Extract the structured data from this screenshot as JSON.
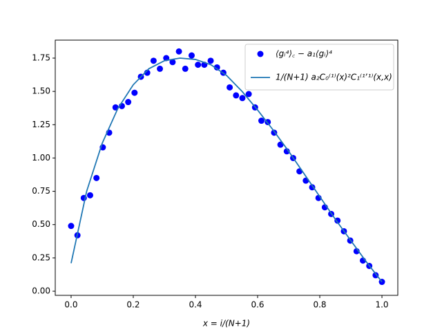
{
  "chart_data": {
    "type": "scatter",
    "x_label": "x = i/(N+1)",
    "xlim": [
      -0.051,
      1.051
    ],
    "ylim": [
      -0.031,
      1.885
    ],
    "xticks": [
      {
        "value": 0,
        "label": "0.0"
      },
      {
        "value": 0.2,
        "label": "0.2"
      },
      {
        "value": 0.4,
        "label": "0.4"
      },
      {
        "value": 0.6,
        "label": "0.6"
      },
      {
        "value": 0.8,
        "label": "0.8"
      },
      {
        "value": 1,
        "label": "1.0"
      }
    ],
    "yticks": [
      {
        "value": 0,
        "label": "0.00"
      },
      {
        "value": 0.25,
        "label": "0.25"
      },
      {
        "value": 0.5,
        "label": "0.50"
      },
      {
        "value": 0.75,
        "label": "0.75"
      },
      {
        "value": 1,
        "label": "1.00"
      },
      {
        "value": 1.25,
        "label": "1.25"
      },
      {
        "value": 1.5,
        "label": "1.50"
      },
      {
        "value": 1.75,
        "label": "1.75"
      }
    ],
    "legend": "upper right",
    "series": [
      {
        "name": "⟨gᵢ⁴⟩꜀ − a₁⟨gᵢ⟩⁴",
        "type": "scatter",
        "color": "#0000ff",
        "x": [
          0,
          0.0204,
          0.0408,
          0.0612,
          0.0816,
          0.102,
          0.1224,
          0.1429,
          0.1633,
          0.1837,
          0.2041,
          0.2245,
          0.2449,
          0.2653,
          0.2857,
          0.3061,
          0.3265,
          0.3469,
          0.3673,
          0.3878,
          0.4082,
          0.4286,
          0.449,
          0.4694,
          0.4898,
          0.5102,
          0.5306,
          0.551,
          0.5714,
          0.5918,
          0.6122,
          0.6327,
          0.6531,
          0.6735,
          0.6939,
          0.7143,
          0.7347,
          0.7551,
          0.7755,
          0.7959,
          0.8163,
          0.8367,
          0.8571,
          0.8776,
          0.898,
          0.9184,
          0.9388,
          0.9592,
          0.9796,
          1
        ],
        "values": [
          0.49,
          0.42,
          0.7,
          0.72,
          0.85,
          1.08,
          1.19,
          1.38,
          1.39,
          1.42,
          1.49,
          1.61,
          1.64,
          1.73,
          1.67,
          1.75,
          1.72,
          1.8,
          1.67,
          1.77,
          1.7,
          1.7,
          1.73,
          1.68,
          1.64,
          1.53,
          1.47,
          1.45,
          1.48,
          1.38,
          1.28,
          1.27,
          1.19,
          1.1,
          1.05,
          1.0,
          0.9,
          0.83,
          0.78,
          0.7,
          0.63,
          0.58,
          0.53,
          0.45,
          0.38,
          0.3,
          0.23,
          0.19,
          0.12,
          0.07
        ]
      },
      {
        "name": "1/(N+1) a₂C₀⁽¹⁾(x)²C₁⁽¹ʼ¹⁾(x,x)",
        "type": "line",
        "color": "#1f77b4",
        "x": [
          0,
          0.05,
          0.1,
          0.15,
          0.2,
          0.25,
          0.3,
          0.35,
          0.4,
          0.45,
          0.5,
          0.55,
          0.6,
          0.65,
          0.7,
          0.75,
          0.8,
          0.85,
          0.9,
          0.95,
          1
        ],
        "values": [
          0.21,
          0.75,
          1.11,
          1.37,
          1.55,
          1.67,
          1.73,
          1.75,
          1.74,
          1.7,
          1.62,
          1.5,
          1.36,
          1.21,
          1.05,
          0.88,
          0.71,
          0.54,
          0.38,
          0.22,
          0.07
        ]
      }
    ]
  }
}
